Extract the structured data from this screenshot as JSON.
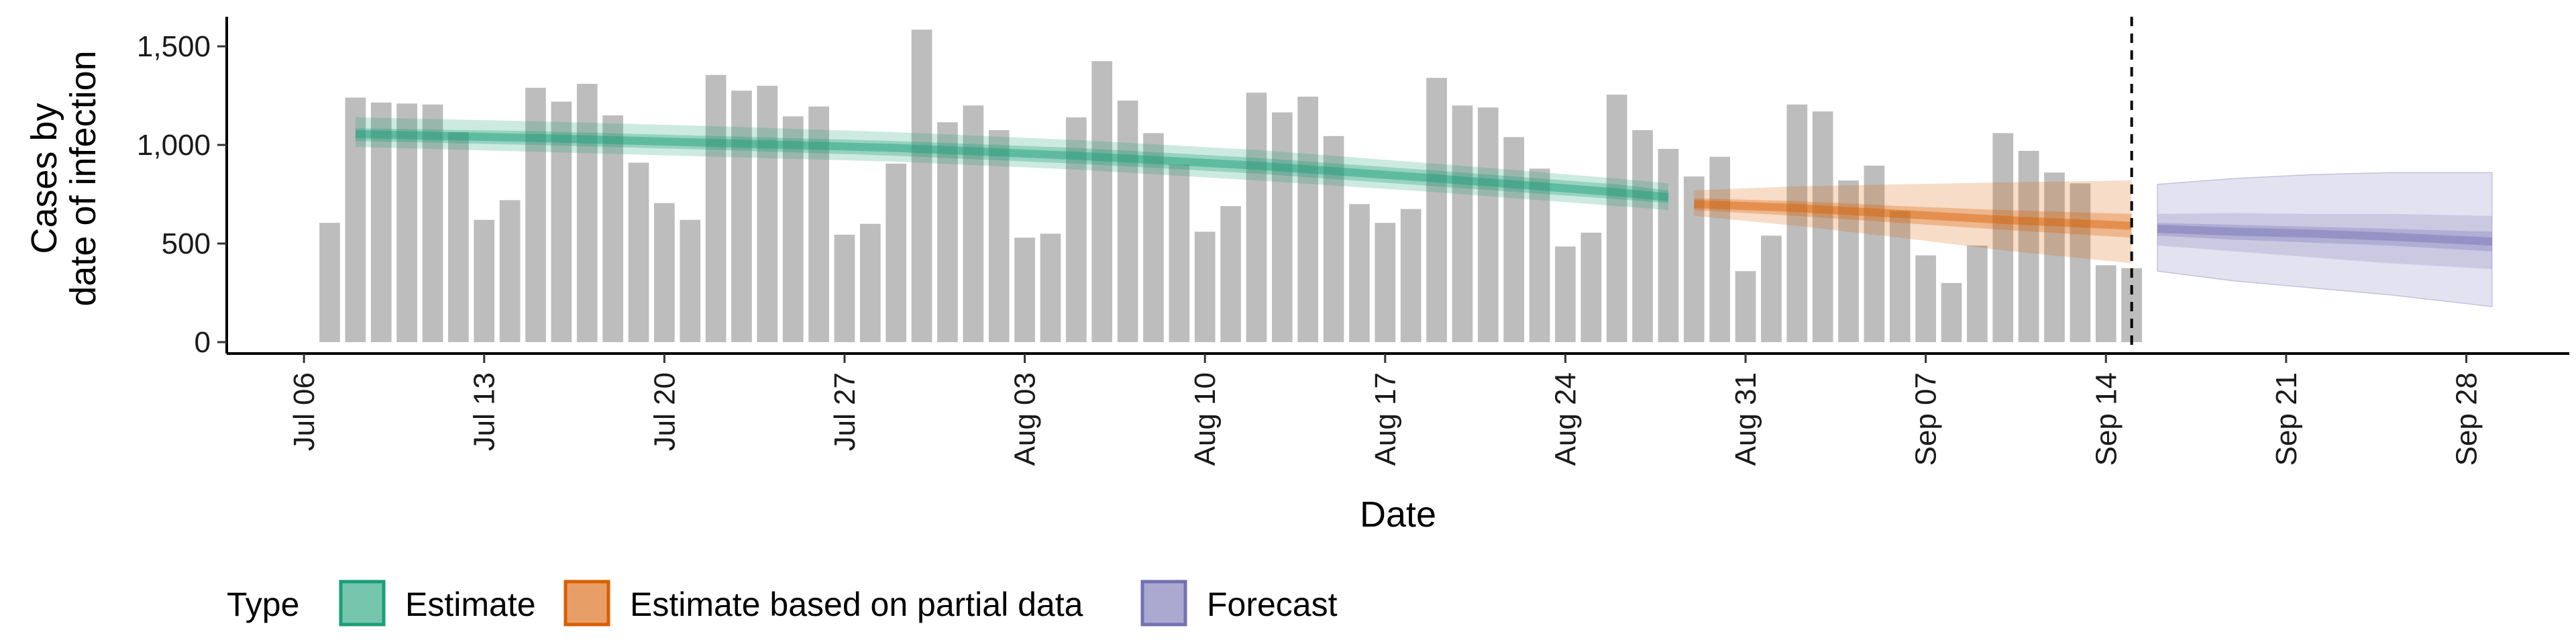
{
  "chart_data": {
    "type": "bar",
    "title": "",
    "xlabel": "Date",
    "ylabel_lines": [
      "Cases by",
      "date of infection"
    ],
    "ylim": [
      0,
      1650
    ],
    "y_ticks": [
      0,
      500,
      1000,
      1500
    ],
    "y_tick_labels": [
      "0",
      "500",
      "1,000",
      "1,500"
    ],
    "x_range": [
      "2020-07-03",
      "2020-10-02"
    ],
    "x_ticks": [
      "2020-07-06",
      "2020-07-13",
      "2020-07-20",
      "2020-07-27",
      "2020-08-03",
      "2020-08-10",
      "2020-08-17",
      "2020-08-24",
      "2020-08-31",
      "2020-09-07",
      "2020-09-14",
      "2020-09-21",
      "2020-09-28"
    ],
    "x_tick_labels": [
      "Jul 06",
      "Jul 13",
      "Jul 20",
      "Jul 27",
      "Aug 03",
      "Aug 10",
      "Aug 17",
      "Aug 24",
      "Aug 31",
      "Sep 07",
      "Sep 14",
      "Sep 21",
      "Sep 28"
    ],
    "grid": false,
    "forecast_date": "2020-09-15",
    "bars": {
      "start_date": "2020-07-07",
      "values": [
        605,
        1240,
        1215,
        1210,
        1205,
        1065,
        620,
        720,
        1290,
        1220,
        1310,
        1150,
        910,
        705,
        620,
        1355,
        1275,
        1300,
        1145,
        1195,
        545,
        600,
        905,
        1585,
        1115,
        1200,
        1075,
        530,
        550,
        1140,
        1425,
        1225,
        1060,
        900,
        560,
        690,
        1265,
        1165,
        1245,
        1045,
        700,
        605,
        675,
        1340,
        1200,
        1190,
        1040,
        880,
        485,
        555,
        1255,
        1075,
        980,
        840,
        940,
        360,
        540,
        1205,
        1170,
        820,
        895,
        665,
        440,
        300,
        490,
        1060,
        970,
        860,
        805,
        390,
        375
      ],
      "color": "#bdbdbd"
    },
    "series": [
      {
        "name": "Estimate",
        "color": "#1b9e77",
        "dates": [
          "2020-07-08",
          "2020-07-15",
          "2020-07-22",
          "2020-07-29",
          "2020-08-05",
          "2020-08-12",
          "2020-08-19",
          "2020-08-26",
          "2020-08-28"
        ],
        "median": [
          1055,
          1035,
          1010,
          985,
          945,
          895,
          830,
          760,
          735
        ],
        "inner_lower": [
          1020,
          1000,
          975,
          945,
          905,
          855,
          790,
          725,
          705
        ],
        "inner_upper": [
          1085,
          1070,
          1045,
          1020,
          985,
          935,
          870,
          800,
          770
        ],
        "outer_lower": [
          990,
          965,
          940,
          915,
          875,
          820,
          760,
          690,
          670
        ],
        "outer_upper": [
          1140,
          1120,
          1095,
          1065,
          1025,
          975,
          905,
          830,
          805
        ]
      },
      {
        "name": "Estimate based on partial data",
        "color": "#d95f02",
        "dates": [
          "2020-08-29",
          "2020-09-02",
          "2020-09-06",
          "2020-09-10",
          "2020-09-15"
        ],
        "median": [
          700,
          680,
          650,
          620,
          590
        ],
        "inner_lower": [
          670,
          640,
          605,
          570,
          530
        ],
        "inner_upper": [
          730,
          715,
          690,
          670,
          650
        ],
        "outer_lower": [
          640,
          590,
          530,
          465,
          400
        ],
        "outer_upper": [
          770,
          790,
          800,
          810,
          820
        ]
      },
      {
        "name": "Forecast",
        "color": "#7570b3",
        "dates": [
          "2020-09-16",
          "2020-09-19",
          "2020-09-22",
          "2020-09-25",
          "2020-09-29"
        ],
        "median": [
          575,
          560,
          550,
          535,
          510
        ],
        "inner_lower": [
          540,
          520,
          505,
          490,
          460
        ],
        "inner_upper": [
          605,
          595,
          585,
          575,
          560
        ],
        "outer_lower": [
          490,
          460,
          430,
          400,
          370
        ],
        "outer_upper": [
          650,
          655,
          650,
          650,
          640
        ],
        "fan_lower": [
          360,
          310,
          275,
          240,
          180
        ],
        "fan_upper": [
          800,
          830,
          850,
          860,
          860
        ]
      }
    ],
    "legend": {
      "title": "Type",
      "position": "bottom-left",
      "items": [
        "Estimate",
        "Estimate based on partial data",
        "Forecast"
      ]
    }
  }
}
